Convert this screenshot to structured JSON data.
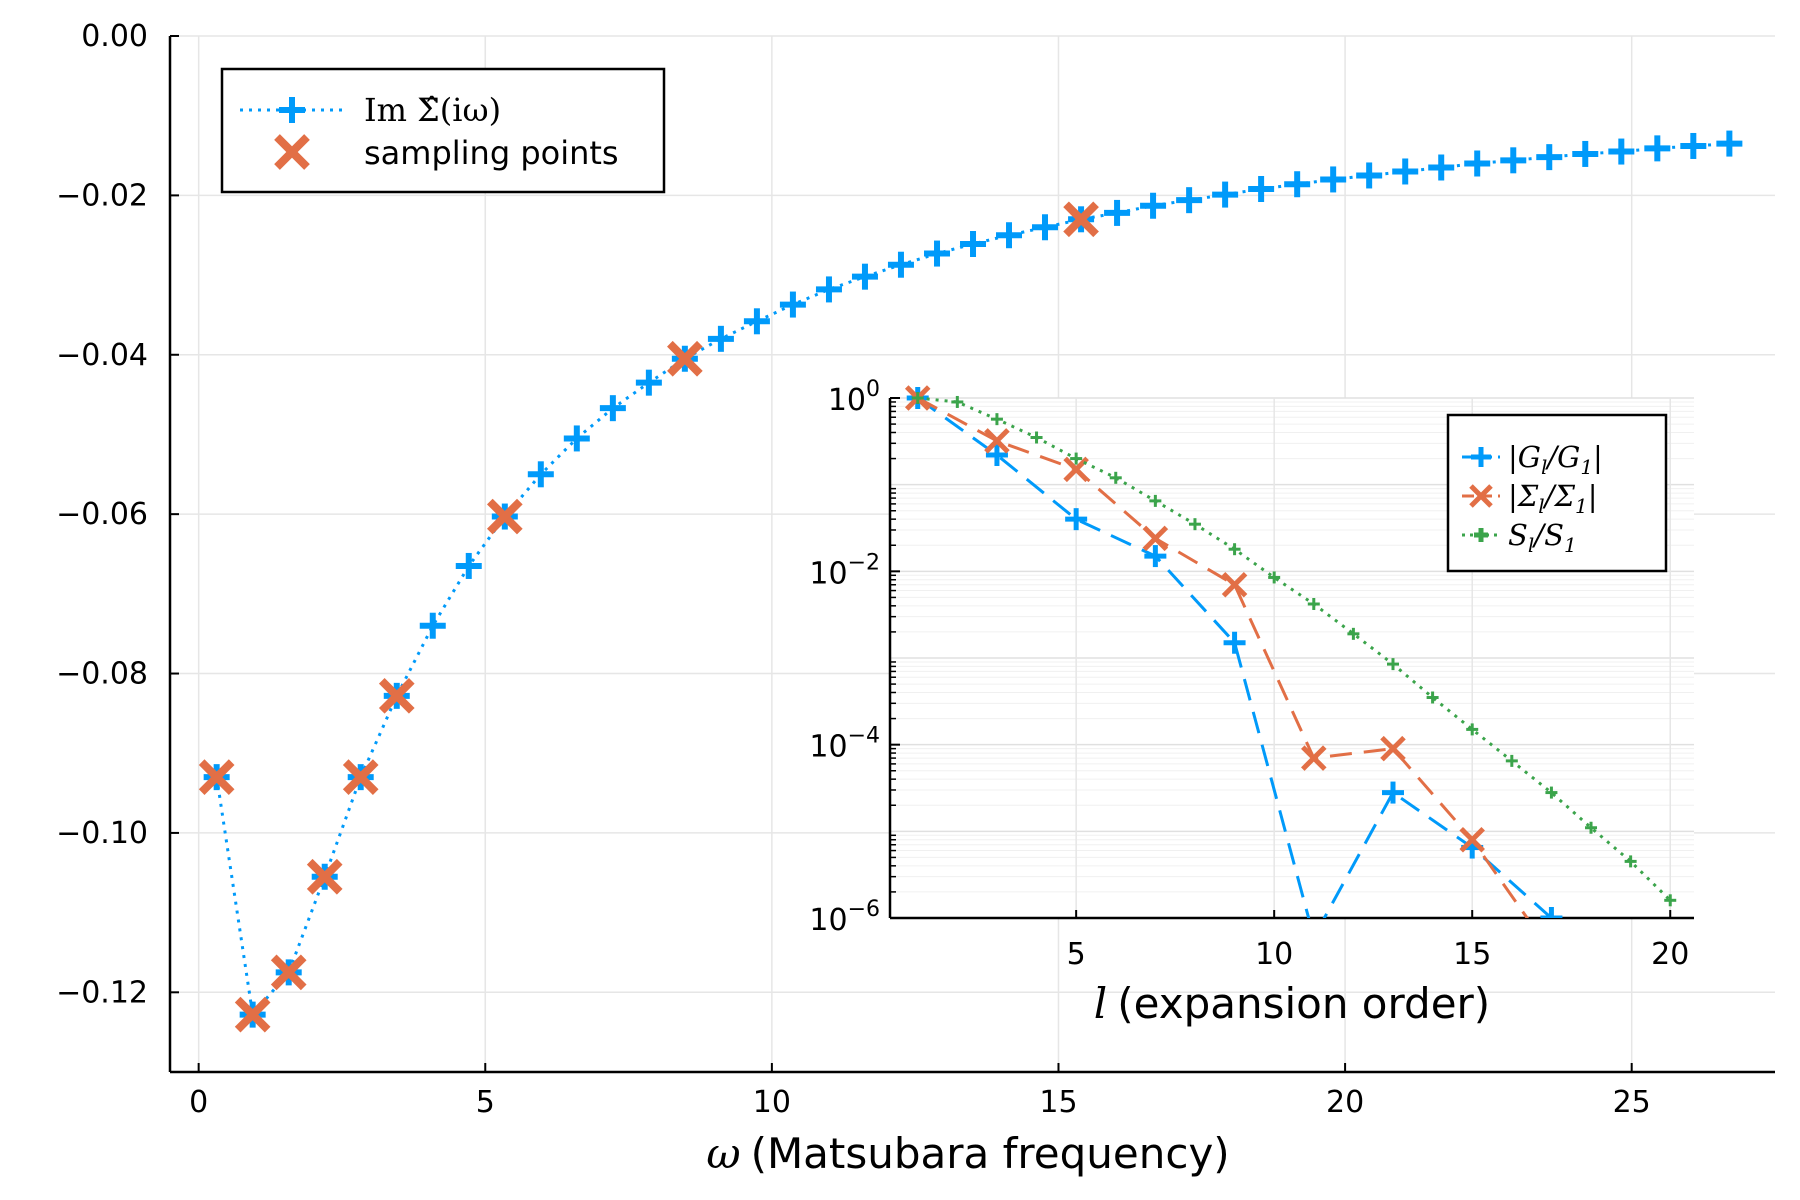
{
  "chart_data": [
    {
      "type": "line",
      "xlabel": "(Matsubara frequency)",
      "xlabel_symbol": "ω",
      "ylabel": "",
      "xlim": [
        -0.5,
        27.5
      ],
      "ylim": [
        -0.13,
        0.0
      ],
      "xticks": [
        "0",
        "5",
        "10",
        "15",
        "20",
        "25"
      ],
      "yticks": [
        "0.00",
        "−0.02",
        "−0.04",
        "−0.06",
        "−0.08",
        "−0.10",
        "−0.12"
      ],
      "grid": true,
      "legend_position": "top-left",
      "series": [
        {
          "name": "Im Σ̂(iω)",
          "name_prefix": "Im ",
          "name_main": "Σ̂(iω)",
          "style": "dotted-plus",
          "color": "#009AFA",
          "x": [
            0.314,
            0.942,
            1.571,
            2.199,
            2.827,
            3.456,
            4.084,
            4.712,
            5.341,
            5.969,
            6.597,
            7.226,
            7.854,
            8.482,
            9.111,
            9.739,
            10.367,
            10.996,
            11.624,
            12.252,
            12.881,
            13.509,
            14.137,
            14.765,
            15.394,
            16.022,
            16.65,
            17.279,
            17.907,
            18.535,
            19.164,
            19.792,
            20.42,
            21.049,
            21.677,
            22.305,
            22.934,
            23.562,
            24.19,
            24.819,
            25.447,
            26.075,
            26.704
          ],
          "y": [
            -0.093,
            -0.1228,
            -0.1175,
            -0.1055,
            -0.093,
            -0.0828,
            -0.074,
            -0.0665,
            -0.0603,
            -0.055,
            -0.0505,
            -0.0467,
            -0.0435,
            -0.0405,
            -0.038,
            -0.0358,
            -0.0337,
            -0.0318,
            -0.0302,
            -0.0287,
            -0.0273,
            -0.0261,
            -0.025,
            -0.024,
            -0.023,
            -0.0222,
            -0.0213,
            -0.0206,
            -0.0199,
            -0.0192,
            -0.0186,
            -0.018,
            -0.0175,
            -0.017,
            -0.0165,
            -0.016,
            -0.0156,
            -0.0152,
            -0.0148,
            -0.0145,
            -0.0141,
            -0.0138,
            -0.0135
          ]
        },
        {
          "name": "sampling points",
          "style": "x-markers",
          "color": "#E26F46",
          "x": [
            0.314,
            0.942,
            1.571,
            2.199,
            2.827,
            3.456,
            5.341,
            8.482,
            15.394
          ],
          "y": [
            -0.093,
            -0.1228,
            -0.1175,
            -0.1055,
            -0.093,
            -0.0828,
            -0.0603,
            -0.0405,
            -0.023
          ]
        }
      ]
    },
    {
      "type": "line",
      "inset": true,
      "xlabel": "(expansion order)",
      "xlabel_symbol": "l",
      "yscale": "log",
      "xlim": [
        0.3,
        20.6
      ],
      "ylim": [
        1e-06,
        1
      ],
      "xticks": [
        "5",
        "10",
        "15",
        "20"
      ],
      "yticks": [
        {
          "base": "10",
          "exp": "0"
        },
        {
          "base": "10",
          "exp": "−2"
        },
        {
          "base": "10",
          "exp": "−4"
        },
        {
          "base": "10",
          "exp": "−6"
        }
      ],
      "grid": true,
      "legend_position": "top-right",
      "series": [
        {
          "name": "|G_l/G_1|",
          "style": "dashed-plus",
          "color": "#009AFA",
          "x": [
            1,
            3,
            5,
            7,
            9,
            11,
            13,
            15,
            17
          ],
          "y": [
            1.0,
            0.22,
            0.04,
            0.015,
            0.0015,
            6e-07,
            2.8e-05,
            6.5e-06,
            1e-06
          ]
        },
        {
          "name": "|Σ_l/Σ_1|",
          "style": "dashed-x",
          "color": "#E26F46",
          "x": [
            1,
            3,
            5,
            7,
            9,
            11,
            13,
            15,
            17
          ],
          "y": [
            1.0,
            0.32,
            0.15,
            0.024,
            0.007,
            7e-05,
            9e-05,
            8e-06,
            4e-07
          ]
        },
        {
          "name": "S_l/S_1",
          "style": "dotted-plus",
          "color": "#3BA44B",
          "x": [
            1,
            2,
            3,
            4,
            5,
            6,
            7,
            8,
            9,
            10,
            11,
            12,
            13,
            14,
            15,
            16,
            17,
            18,
            19,
            20
          ],
          "y": [
            1.0,
            0.9,
            0.57,
            0.35,
            0.2,
            0.12,
            0.065,
            0.035,
            0.018,
            0.0085,
            0.0042,
            0.0019,
            0.00085,
            0.00035,
            0.00015,
            6.5e-05,
            2.8e-05,
            1.1e-05,
            4.5e-06,
            1.6e-06
          ]
        }
      ],
      "legend": {
        "entries": [
          {
            "pre": "|",
            "sym": "G",
            "sub": "l",
            "mid": "/",
            "sym2": "G",
            "sub2": "1",
            "post": "|"
          },
          {
            "pre": "|",
            "sym": "Σ",
            "sub": "l",
            "mid": "/",
            "sym2": "Σ",
            "sub2": "1",
            "post": "|"
          },
          {
            "pre": "",
            "sym": "S",
            "sub": "l",
            "mid": "/",
            "sym2": "S",
            "sub2": "1",
            "post": ""
          }
        ]
      }
    }
  ]
}
